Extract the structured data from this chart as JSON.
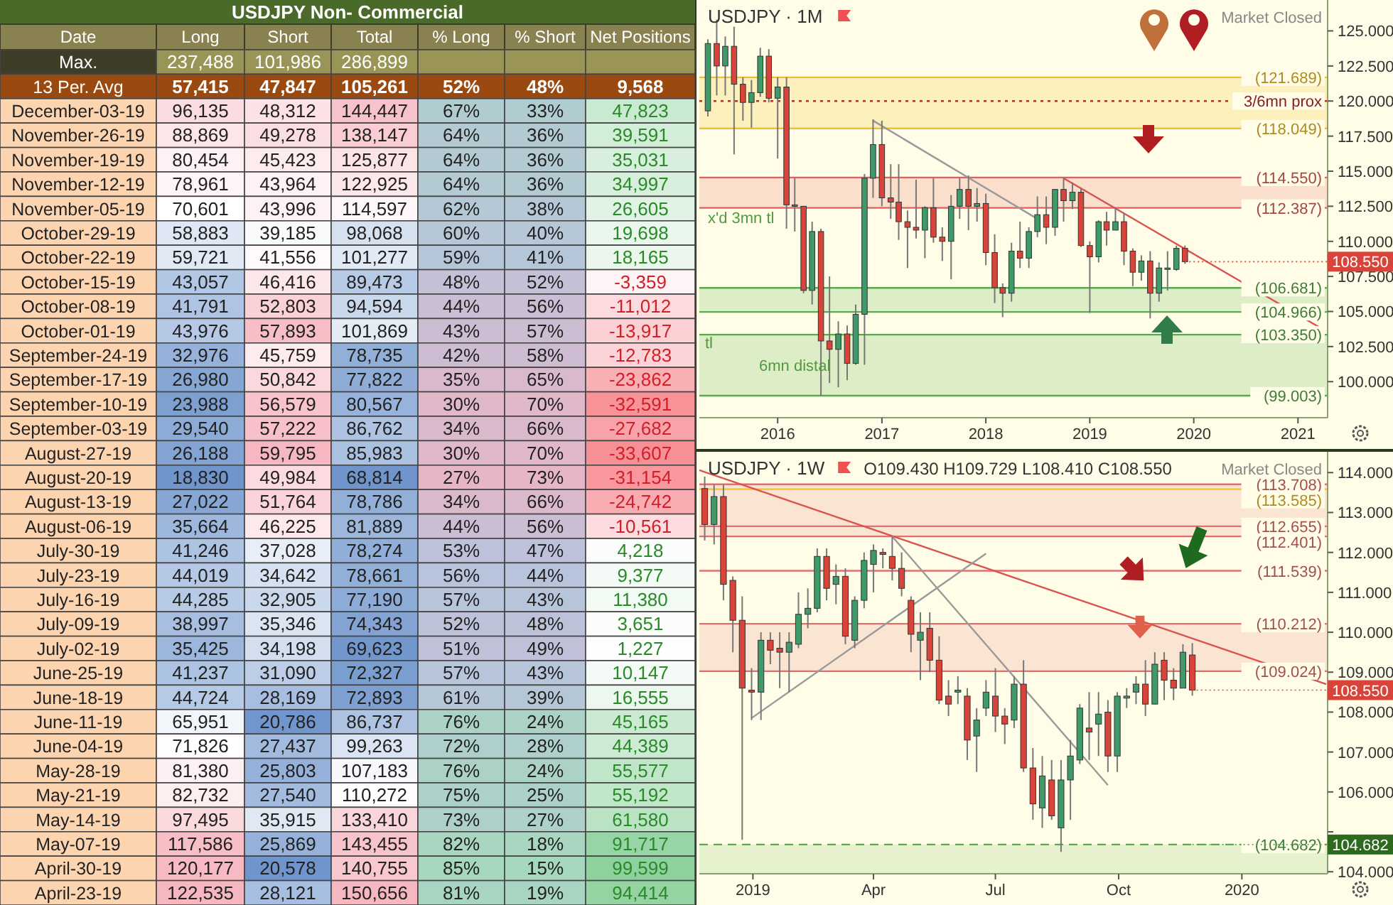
{
  "chart_data": [
    {
      "type": "heatmap",
      "title": "USDJPY Non- Commercial",
      "ylabel": "Date",
      "categories": [
        "Long",
        "Short",
        "Total",
        "% Long",
        "% Short",
        "Net Positions"
      ],
      "y_categories": [
        "Max.",
        "13 Per. Avg",
        "December-03-19",
        "November-26-19",
        "November-19-19",
        "November-12-19",
        "November-05-19",
        "October-29-19",
        "October-22-19",
        "October-15-19",
        "October-08-19",
        "October-01-19",
        "September-24-19",
        "September-17-19",
        "September-10-19",
        "September-03-19",
        "August-27-19",
        "August-20-19",
        "August-13-19",
        "August-06-19",
        "July-30-19",
        "July-23-19",
        "July-16-19",
        "July-09-19",
        "July-02-19",
        "June-25-19",
        "June-18-19",
        "June-11-19",
        "June-04-19",
        "May-28-19",
        "May-21-19",
        "May-14-19",
        "May-07-19",
        "April-30-19",
        "April-23-19"
      ],
      "cells": [
        [
          237488,
          101986,
          286899,
          null,
          null,
          null
        ],
        [
          57415,
          47847,
          105261,
          52,
          48,
          9568
        ],
        [
          96135,
          48312,
          144447,
          67,
          33,
          47823
        ],
        [
          88869,
          49278,
          138147,
          64,
          36,
          39591
        ],
        [
          80454,
          45423,
          125877,
          64,
          36,
          35031
        ],
        [
          78961,
          43964,
          122925,
          64,
          36,
          34997
        ],
        [
          70601,
          43996,
          114597,
          62,
          38,
          26605
        ],
        [
          58883,
          39185,
          98068,
          60,
          40,
          19698
        ],
        [
          59721,
          41556,
          101277,
          59,
          41,
          18165
        ],
        [
          43057,
          46416,
          89473,
          48,
          52,
          -3359
        ],
        [
          41791,
          52803,
          94594,
          44,
          56,
          -11012
        ],
        [
          43976,
          57893,
          101869,
          43,
          57,
          -13917
        ],
        [
          32976,
          45759,
          78735,
          42,
          58,
          -12783
        ],
        [
          26980,
          50842,
          77822,
          35,
          65,
          -23862
        ],
        [
          23988,
          56579,
          80567,
          30,
          70,
          -32591
        ],
        [
          29540,
          57222,
          86762,
          34,
          66,
          -27682
        ],
        [
          26188,
          59795,
          85983,
          30,
          70,
          -33607
        ],
        [
          18830,
          49984,
          68814,
          27,
          73,
          -31154
        ],
        [
          27022,
          51764,
          78786,
          34,
          66,
          -24742
        ],
        [
          35664,
          46225,
          81889,
          44,
          56,
          -10561
        ],
        [
          41246,
          37028,
          78274,
          53,
          47,
          4218
        ],
        [
          44019,
          34642,
          78661,
          56,
          44,
          9377
        ],
        [
          44285,
          32905,
          77190,
          57,
          43,
          11380
        ],
        [
          38997,
          35346,
          74343,
          52,
          48,
          3651
        ],
        [
          35425,
          34198,
          69623,
          51,
          49,
          1227
        ],
        [
          41237,
          31090,
          72327,
          57,
          43,
          10147
        ],
        [
          44724,
          28169,
          72893,
          61,
          39,
          16555
        ],
        [
          65951,
          20786,
          86737,
          76,
          24,
          45165
        ],
        [
          71826,
          27437,
          99263,
          72,
          28,
          44389
        ],
        [
          81380,
          25803,
          107183,
          76,
          24,
          55577
        ],
        [
          82732,
          27540,
          110272,
          75,
          25,
          55192
        ],
        [
          97495,
          35915,
          133410,
          73,
          27,
          61580
        ],
        [
          117586,
          25869,
          143455,
          82,
          18,
          91717
        ],
        [
          120177,
          20578,
          140755,
          85,
          15,
          99599
        ],
        [
          122535,
          28121,
          150656,
          81,
          19,
          94414
        ]
      ],
      "cell_labels": [
        [
          "237,488",
          "101,986",
          "286,899",
          null,
          null,
          null
        ],
        [
          "57,415",
          "47,847",
          "105,261",
          "52%",
          "48%",
          "9,568"
        ],
        [
          "96,135",
          "48,312",
          "144,447",
          "67%",
          "33%",
          "47,823"
        ],
        [
          "88,869",
          "49,278",
          "138,147",
          "64%",
          "36%",
          "39,591"
        ],
        [
          "80,454",
          "45,423",
          "125,877",
          "64%",
          "36%",
          "35,031"
        ],
        [
          "78,961",
          "43,964",
          "122,925",
          "64%",
          "36%",
          "34,997"
        ],
        [
          "70,601",
          "43,996",
          "114,597",
          "62%",
          "38%",
          "26,605"
        ],
        [
          "58,883",
          "39,185",
          "98,068",
          "60%",
          "40%",
          "19,698"
        ],
        [
          "59,721",
          "41,556",
          "101,277",
          "59%",
          "41%",
          "18,165"
        ],
        [
          "43,057",
          "46,416",
          "89,473",
          "48%",
          "52%",
          "-3,359"
        ],
        [
          "41,791",
          "52,803",
          "94,594",
          "44%",
          "56%",
          "-11,012"
        ],
        [
          "43,976",
          "57,893",
          "101,869",
          "43%",
          "57%",
          "-13,917"
        ],
        [
          "32,976",
          "45,759",
          "78,735",
          "42%",
          "58%",
          "-12,783"
        ],
        [
          "26,980",
          "50,842",
          "77,822",
          "35%",
          "65%",
          "-23,862"
        ],
        [
          "23,988",
          "56,579",
          "80,567",
          "30%",
          "70%",
          "-32,591"
        ],
        [
          "29,540",
          "57,222",
          "86,762",
          "34%",
          "66%",
          "-27,682"
        ],
        [
          "26,188",
          "59,795",
          "85,983",
          "30%",
          "70%",
          "-33,607"
        ],
        [
          "18,830",
          "49,984",
          "68,814",
          "27%",
          "73%",
          "-31,154"
        ],
        [
          "27,022",
          "51,764",
          "78,786",
          "34%",
          "66%",
          "-24,742"
        ],
        [
          "35,664",
          "46,225",
          "81,889",
          "44%",
          "56%",
          "-10,561"
        ],
        [
          "41,246",
          "37,028",
          "78,274",
          "53%",
          "47%",
          "4,218"
        ],
        [
          "44,019",
          "34,642",
          "78,661",
          "56%",
          "44%",
          "9,377"
        ],
        [
          "44,285",
          "32,905",
          "77,190",
          "57%",
          "43%",
          "11,380"
        ],
        [
          "38,997",
          "35,346",
          "74,343",
          "52%",
          "48%",
          "3,651"
        ],
        [
          "35,425",
          "34,198",
          "69,623",
          "51%",
          "49%",
          "1,227"
        ],
        [
          "41,237",
          "31,090",
          "72,327",
          "57%",
          "43%",
          "10,147"
        ],
        [
          "44,724",
          "28,169",
          "72,893",
          "61%",
          "39%",
          "16,555"
        ],
        [
          "65,951",
          "20,786",
          "86,737",
          "76%",
          "24%",
          "45,165"
        ],
        [
          "71,826",
          "27,437",
          "99,263",
          "72%",
          "28%",
          "44,389"
        ],
        [
          "81,380",
          "25,803",
          "107,183",
          "76%",
          "24%",
          "55,577"
        ],
        [
          "82,732",
          "27,540",
          "110,272",
          "75%",
          "25%",
          "55,192"
        ],
        [
          "97,495",
          "35,915",
          "133,410",
          "73%",
          "27%",
          "61,580"
        ],
        [
          "117,586",
          "25,869",
          "143,455",
          "82%",
          "18%",
          "91,717"
        ],
        [
          "120,177",
          "20,578",
          "140,755",
          "85%",
          "15%",
          "99,599"
        ],
        [
          "122,535",
          "28,121",
          "150,656",
          "81%",
          "19%",
          "94,414"
        ]
      ]
    },
    {
      "type": "candlestick",
      "title": "USDJPY · 1M",
      "x": [
        "2015-05",
        "2015-06",
        "2015-07",
        "2015-08",
        "2015-09",
        "2015-10",
        "2015-11",
        "2015-12",
        "2016-01",
        "2016-02",
        "2016-03",
        "2016-04",
        "2016-05",
        "2016-06",
        "2016-07",
        "2016-08",
        "2016-09",
        "2016-10",
        "2016-11",
        "2016-12",
        "2017-01",
        "2017-02",
        "2017-03",
        "2017-04",
        "2017-05",
        "2017-06",
        "2017-07",
        "2017-08",
        "2017-09",
        "2017-10",
        "2017-11",
        "2017-12",
        "2018-01",
        "2018-02",
        "2018-03",
        "2018-04",
        "2018-05",
        "2018-06",
        "2018-07",
        "2018-08",
        "2018-09",
        "2018-10",
        "2018-11",
        "2018-12",
        "2019-01",
        "2019-02",
        "2019-03",
        "2019-04",
        "2019-05",
        "2019-06",
        "2019-07",
        "2019-08",
        "2019-09",
        "2019-10",
        "2019-11",
        "2019-12"
      ],
      "ohlc": [
        [
          119.3,
          124.4,
          118.9,
          124.1
        ],
        [
          124.1,
          125.8,
          120.4,
          122.5
        ],
        [
          122.5,
          124.6,
          120.4,
          123.9
        ],
        [
          123.9,
          125.3,
          116.2,
          121.2
        ],
        [
          121.2,
          121.7,
          118.6,
          119.9
        ],
        [
          119.9,
          121.5,
          118.1,
          120.6
        ],
        [
          120.6,
          123.8,
          120.3,
          123.2
        ],
        [
          123.2,
          123.7,
          119.9,
          120.2
        ],
        [
          120.2,
          121.7,
          115.9,
          121.0
        ],
        [
          121.0,
          121.7,
          110.9,
          112.6
        ],
        [
          112.6,
          114.5,
          110.7,
          112.5
        ],
        [
          112.5,
          112.5,
          106.3,
          106.5
        ],
        [
          106.5,
          111.4,
          105.5,
          110.7
        ],
        [
          110.7,
          110.9,
          99.0,
          102.9
        ],
        [
          102.9,
          107.5,
          99.9,
          102.3
        ],
        [
          102.3,
          104.3,
          99.6,
          103.4
        ],
        [
          103.4,
          104.0,
          100.1,
          101.3
        ],
        [
          101.3,
          105.5,
          101.2,
          104.8
        ],
        [
          104.8,
          114.8,
          101.2,
          114.5
        ],
        [
          114.5,
          118.7,
          113.1,
          116.9
        ],
        [
          116.9,
          118.6,
          112.5,
          113.1
        ],
        [
          113.1,
          115.5,
          111.6,
          112.8
        ],
        [
          112.8,
          115.5,
          110.1,
          111.4
        ],
        [
          111.4,
          112.2,
          108.1,
          111.0
        ],
        [
          111.0,
          114.4,
          110.2,
          110.8
        ],
        [
          110.8,
          112.5,
          108.8,
          112.4
        ],
        [
          112.4,
          114.5,
          109.9,
          110.3
        ],
        [
          110.3,
          111.0,
          108.6,
          110.0
        ],
        [
          110.0,
          113.3,
          107.3,
          112.5
        ],
        [
          112.5,
          114.5,
          111.6,
          113.7
        ],
        [
          113.7,
          114.7,
          110.8,
          112.5
        ],
        [
          112.5,
          113.8,
          111.4,
          112.7
        ],
        [
          112.7,
          113.4,
          108.3,
          109.2
        ],
        [
          109.2,
          110.5,
          105.6,
          106.7
        ],
        [
          106.7,
          107.0,
          104.6,
          106.3
        ],
        [
          106.3,
          109.9,
          105.7,
          109.3
        ],
        [
          109.3,
          111.4,
          108.1,
          108.8
        ],
        [
          108.8,
          111.0,
          108.1,
          110.7
        ],
        [
          110.7,
          113.2,
          110.3,
          111.9
        ],
        [
          111.9,
          113.2,
          109.8,
          111.0
        ],
        [
          111.0,
          113.7,
          110.4,
          113.7
        ],
        [
          113.7,
          114.55,
          111.4,
          112.9
        ],
        [
          112.9,
          114.2,
          112.3,
          113.5
        ],
        [
          113.5,
          113.8,
          109.6,
          109.7
        ],
        [
          109.7,
          110.0,
          104.9,
          108.9
        ],
        [
          108.9,
          111.5,
          108.5,
          111.4
        ],
        [
          111.4,
          112.1,
          109.7,
          110.8
        ],
        [
          110.8,
          112.4,
          110.8,
          111.4
        ],
        [
          111.4,
          112.0,
          108.3,
          109.3
        ],
        [
          109.3,
          109.5,
          106.8,
          107.8
        ],
        [
          107.8,
          109.0,
          107.2,
          108.6
        ],
        [
          108.6,
          109.3,
          104.5,
          106.3
        ],
        [
          106.3,
          108.5,
          105.7,
          108.1
        ],
        [
          108.0,
          109.3,
          106.5,
          108.1
        ],
        [
          108.0,
          109.7,
          107.9,
          109.5
        ],
        [
          109.5,
          109.7,
          108.4,
          108.55
        ]
      ],
      "xlim": [
        "2015-04",
        "2021-04-15"
      ],
      "ylim": [
        97.43,
        127
      ],
      "xticks": [
        {
          "value": "2016-01-01",
          "label": "2016"
        },
        {
          "value": "2017-01-01",
          "label": "2017"
        },
        {
          "value": "2018-01-01",
          "label": "2018"
        },
        {
          "value": "2019-01-01",
          "label": "2019"
        },
        {
          "value": "2020-01-01",
          "label": "2020"
        },
        {
          "value": "2021-01-01",
          "label": "2021"
        }
      ],
      "yticks": [
        {
          "value": 100,
          "label": "100.000"
        },
        {
          "value": 102.5,
          "label": "102.500"
        },
        {
          "value": 105,
          "label": "105.000"
        },
        {
          "value": 107.5,
          "label": "107.500"
        },
        {
          "value": 110,
          "label": "110.000"
        },
        {
          "value": 112.5,
          "label": "112.500"
        },
        {
          "value": 115,
          "label": "115.000"
        },
        {
          "value": 117.5,
          "label": "117.500"
        },
        {
          "value": 120,
          "label": "120.000"
        },
        {
          "value": 122.5,
          "label": "122.500"
        },
        {
          "value": 125,
          "label": "125.000"
        }
      ],
      "bands": [
        {
          "axis": "y",
          "from": 118.049,
          "to": 121.689,
          "color": "#f5d66a"
        },
        {
          "axis": "y",
          "from": 112.387,
          "to": 114.55,
          "color": "#f2a59a"
        },
        {
          "axis": "y",
          "from": 104.966,
          "to": 106.681,
          "color": "#9fd08a"
        },
        {
          "axis": "y",
          "from": 99.003,
          "to": 103.35,
          "color": "#9fd08a"
        }
      ],
      "ref_lines": [
        {
          "axis": "y",
          "value": 121.689,
          "label": "(121.689)",
          "color": "#f0c030"
        },
        {
          "axis": "y",
          "value": 120,
          "label": "3/6mn prox",
          "color": "#c0282d",
          "line_style": "dotted"
        },
        {
          "axis": "y",
          "value": 118.049,
          "label": "(118.049)",
          "color": "#f0c030"
        },
        {
          "axis": "y",
          "value": 114.55,
          "label": "(114.550)",
          "color": "#e06060"
        },
        {
          "axis": "y",
          "value": 112.387,
          "label": "(112.387)",
          "color": "#e06060"
        },
        {
          "axis": "y",
          "value": 106.681,
          "label": "(106.681)",
          "color": "#5aaa50"
        },
        {
          "axis": "y",
          "value": 104.966,
          "label": "(104.966)",
          "color": "#5aaa50"
        },
        {
          "axis": "y",
          "value": 103.35,
          "label": "(103.350)",
          "color": "#5aaa50"
        },
        {
          "axis": "y",
          "value": 99.003,
          "label": "(99.003)",
          "color": "#5aaa50"
        }
      ],
      "series": [
        {
          "type": "line",
          "color": "#d9534f",
          "x": [
            "2018-10",
            "2021-04"
          ],
          "values": [
            114.5,
            103.7
          ]
        },
        {
          "type": "line",
          "color": "#999999",
          "x": [
            "2016-12",
            "2018-07"
          ],
          "values": [
            118.6,
            111.6
          ]
        }
      ],
      "annotations": [
        "Market Closed",
        "x'd 3mn tl",
        "tl",
        "6mn distal",
        {
          "text": "108.550",
          "x": "2019-12",
          "y": 108.55
        }
      ]
    },
    {
      "type": "candlestick",
      "title": "USDJPY · 1W",
      "subtitle": "O109.430 H109.729 L108.410 C108.550",
      "x": [
        "2018-11-26",
        "2018-12-03",
        "2018-12-10",
        "2018-12-17",
        "2018-12-24",
        "2018-12-31",
        "2019-01-07",
        "2019-01-14",
        "2019-01-21",
        "2019-01-28",
        "2019-02-04",
        "2019-02-11",
        "2019-02-18",
        "2019-02-25",
        "2019-03-04",
        "2019-03-11",
        "2019-03-18",
        "2019-03-25",
        "2019-04-01",
        "2019-04-08",
        "2019-04-15",
        "2019-04-22",
        "2019-04-29",
        "2019-05-06",
        "2019-05-13",
        "2019-05-20",
        "2019-05-27",
        "2019-06-03",
        "2019-06-10",
        "2019-06-17",
        "2019-06-24",
        "2019-07-01",
        "2019-07-08",
        "2019-07-15",
        "2019-07-22",
        "2019-07-29",
        "2019-08-05",
        "2019-08-12",
        "2019-08-19",
        "2019-08-26",
        "2019-09-02",
        "2019-09-09",
        "2019-09-16",
        "2019-09-23",
        "2019-09-30",
        "2019-10-07",
        "2019-10-14",
        "2019-10-21",
        "2019-10-28",
        "2019-11-04",
        "2019-11-11",
        "2019-11-18",
        "2019-11-25"
      ],
      "ohlc": [
        [
          113.6,
          113.9,
          112.3,
          112.7
        ],
        [
          112.7,
          113.7,
          112.2,
          113.4
        ],
        [
          113.4,
          113.7,
          110.8,
          111.2
        ],
        [
          111.3,
          111.4,
          109.5,
          110.3
        ],
        [
          110.3,
          110.9,
          104.8,
          108.6
        ],
        [
          108.55,
          109.1,
          107.8,
          108.5
        ],
        [
          108.5,
          110.0,
          107.8,
          109.8
        ],
        [
          109.8,
          110.0,
          109.2,
          109.55
        ],
        [
          109.6,
          110.0,
          108.6,
          109.5
        ],
        [
          109.5,
          110.0,
          108.5,
          109.75
        ],
        [
          109.7,
          111.0,
          109.6,
          110.45
        ],
        [
          110.45,
          111.1,
          110.1,
          110.6
        ],
        [
          110.6,
          112.1,
          110.5,
          111.9
        ],
        [
          111.9,
          112.1,
          110.8,
          111.1
        ],
        [
          111.2,
          111.7,
          110.7,
          111.4
        ],
        [
          111.4,
          111.6,
          109.7,
          109.9
        ],
        [
          109.8,
          110.9,
          109.6,
          110.8
        ],
        [
          110.8,
          112.0,
          110.6,
          111.8
        ],
        [
          111.7,
          112.2,
          111.0,
          112.05
        ],
        [
          112.0,
          112.1,
          111.6,
          111.95
        ],
        [
          111.9,
          112.4,
          111.3,
          111.6
        ],
        [
          111.6,
          112.0,
          110.9,
          111.1
        ],
        [
          110.8,
          110.9,
          109.5,
          109.95
        ],
        [
          109.8,
          110.5,
          108.8,
          110.0
        ],
        [
          110.1,
          110.5,
          109.0,
          109.3
        ],
        [
          109.3,
          109.9,
          108.2,
          108.3
        ],
        [
          108.4,
          108.8,
          107.9,
          108.2
        ],
        [
          108.5,
          108.9,
          108.2,
          108.55
        ],
        [
          108.4,
          108.6,
          106.8,
          107.3
        ],
        [
          107.4,
          108.1,
          106.5,
          107.8
        ],
        [
          108.1,
          108.8,
          107.9,
          108.5
        ],
        [
          108.4,
          109.1,
          107.5,
          107.9
        ],
        [
          107.9,
          108.1,
          107.2,
          107.7
        ],
        [
          107.8,
          108.9,
          107.6,
          108.7
        ],
        [
          108.7,
          109.3,
          106.5,
          106.6
        ],
        [
          106.6,
          107.1,
          105.3,
          105.7
        ],
        [
          105.6,
          106.9,
          105.1,
          106.4
        ],
        [
          106.3,
          106.8,
          105.3,
          105.4
        ],
        [
          105.1,
          106.8,
          104.5,
          106.3
        ],
        [
          106.3,
          107.3,
          105.3,
          106.9
        ],
        [
          106.8,
          108.2,
          106.7,
          108.1
        ],
        [
          107.6,
          108.5,
          106.8,
          107.5
        ],
        [
          107.7,
          108.5,
          106.9,
          107.95
        ],
        [
          108.0,
          108.3,
          106.5,
          106.9
        ],
        [
          106.9,
          108.5,
          106.5,
          108.4
        ],
        [
          108.35,
          108.6,
          108.1,
          108.4
        ],
        [
          108.5,
          108.9,
          108.2,
          108.7
        ],
        [
          108.7,
          109.3,
          107.9,
          108.2
        ],
        [
          108.2,
          109.5,
          108.2,
          109.2
        ],
        [
          109.3,
          109.5,
          108.3,
          108.8
        ],
        [
          108.8,
          109.1,
          108.3,
          108.6
        ],
        [
          108.6,
          109.7,
          108.6,
          109.5
        ],
        [
          109.43,
          109.729,
          108.41,
          108.55
        ]
      ],
      "xlim": [
        "2018-11-22",
        "2020-03-05"
      ],
      "ylim": [
        103.95,
        114.45
      ],
      "xticks": [
        {
          "value": "2019-01-01",
          "label": "2019"
        },
        {
          "value": "2019-04-01",
          "label": "Apr"
        },
        {
          "value": "2019-07-01",
          "label": "Jul"
        },
        {
          "value": "2019-10-01",
          "label": "Oct"
        },
        {
          "value": "2020-01-01",
          "label": "2020"
        }
      ],
      "yticks": [
        {
          "value": 104,
          "label": "104.000"
        },
        {
          "value": 105,
          "label": null
        },
        {
          "value": 106,
          "label": "106.000"
        },
        {
          "value": 107,
          "label": "107.000"
        },
        {
          "value": 108,
          "label": "108.000"
        },
        {
          "value": 109,
          "label": "109.000"
        },
        {
          "value": 110,
          "label": "110.000"
        },
        {
          "value": 111,
          "label": "111.000"
        },
        {
          "value": 112,
          "label": "112.000"
        },
        {
          "value": 113,
          "label": "113.000"
        },
        {
          "value": 114,
          "label": "114.000"
        }
      ],
      "bands": [
        {
          "axis": "y",
          "from": 112.401,
          "to": 113.708,
          "color": "#f2b8a8"
        },
        {
          "axis": "y",
          "from": 109.024,
          "to": 110.212,
          "color": "#f2b8a8"
        },
        {
          "axis": "y",
          "from": 103.95,
          "to": 104.682,
          "color": "#b6dd9e"
        }
      ],
      "ref_lines": [
        {
          "axis": "y",
          "value": 113.708,
          "label": "(113.708)",
          "color": "#e07070"
        },
        {
          "axis": "y",
          "value": 113.585,
          "label": "(113.585)",
          "color": "#f0c030"
        },
        {
          "axis": "y",
          "value": 112.655,
          "label": "(112.655)",
          "color": "#e07070"
        },
        {
          "axis": "y",
          "value": 112.401,
          "label": "(112.401)",
          "color": "#e07070"
        },
        {
          "axis": "y",
          "value": 111.539,
          "label": "(111.539)",
          "color": "#e07070"
        },
        {
          "axis": "y",
          "value": 110.212,
          "label": "(110.212)",
          "color": "#e07070"
        },
        {
          "axis": "y",
          "value": 109.024,
          "label": "(109.024)",
          "color": "#e07070"
        },
        {
          "axis": "y",
          "value": 104.682,
          "label": "(104.682)",
          "color": "#5aaa50",
          "line_style": "dashed"
        }
      ],
      "series": [
        {
          "type": "line",
          "color": "#d9534f",
          "x": [
            "2018-11-22",
            "2020-03-04"
          ],
          "values": [
            114.06,
            108.7
          ]
        },
        {
          "type": "line",
          "color": "#999999",
          "x": [
            "2018-12-31",
            "2019-06-24"
          ],
          "values": [
            107.85,
            111.97
          ]
        },
        {
          "type": "line",
          "color": "#999999",
          "x": [
            "2019-04-15",
            "2019-09-23"
          ],
          "values": [
            112.4,
            106.17
          ]
        }
      ],
      "annotations": [
        "Market Closed",
        {
          "text": "108.550",
          "x": "2019-11-25",
          "y": 108.55
        },
        {
          "text": "104.682",
          "x": "2019-11-25",
          "y": 104.682
        }
      ]
    }
  ]
}
